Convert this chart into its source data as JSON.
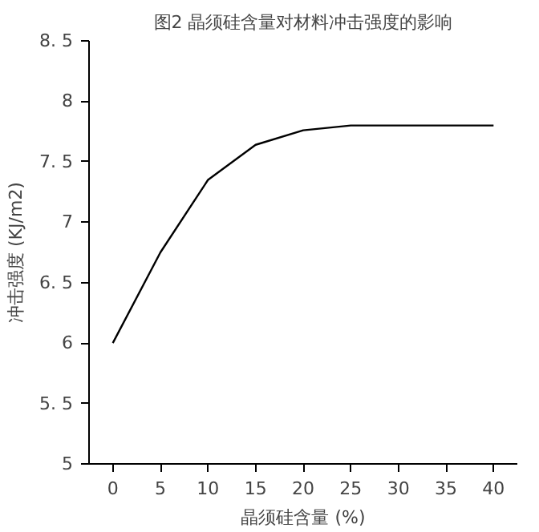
{
  "chart_data": {
    "type": "line",
    "title": "图2 晶须硅含量对材料冲击强度的影响",
    "xlabel": "晶须硅含量 (%)",
    "ylabel": "冲击强度 (KJ/m2)",
    "x": [
      0,
      5,
      10,
      15,
      20,
      25,
      30,
      35,
      40
    ],
    "series": [
      {
        "color": "#000000",
        "values": [
          6.0,
          6.75,
          7.35,
          7.64,
          7.76,
          7.8,
          7.8,
          7.8,
          7.8
        ]
      }
    ],
    "xlim": [
      -2.5,
      42.5
    ],
    "xticks": [
      0,
      5,
      10,
      15,
      20,
      25,
      30,
      35,
      40
    ],
    "ylim": [
      5,
      8.5
    ],
    "yticks": [
      5,
      {
        "value": 5.5,
        "label": "5. 5"
      },
      6,
      {
        "value": 6.5,
        "label": "6. 5"
      },
      7,
      {
        "value": 7.5,
        "label": "7. 5"
      },
      8,
      {
        "value": 8.5,
        "label": "8. 5"
      }
    ],
    "grid": false,
    "marker": "none",
    "line_style": "solid"
  }
}
